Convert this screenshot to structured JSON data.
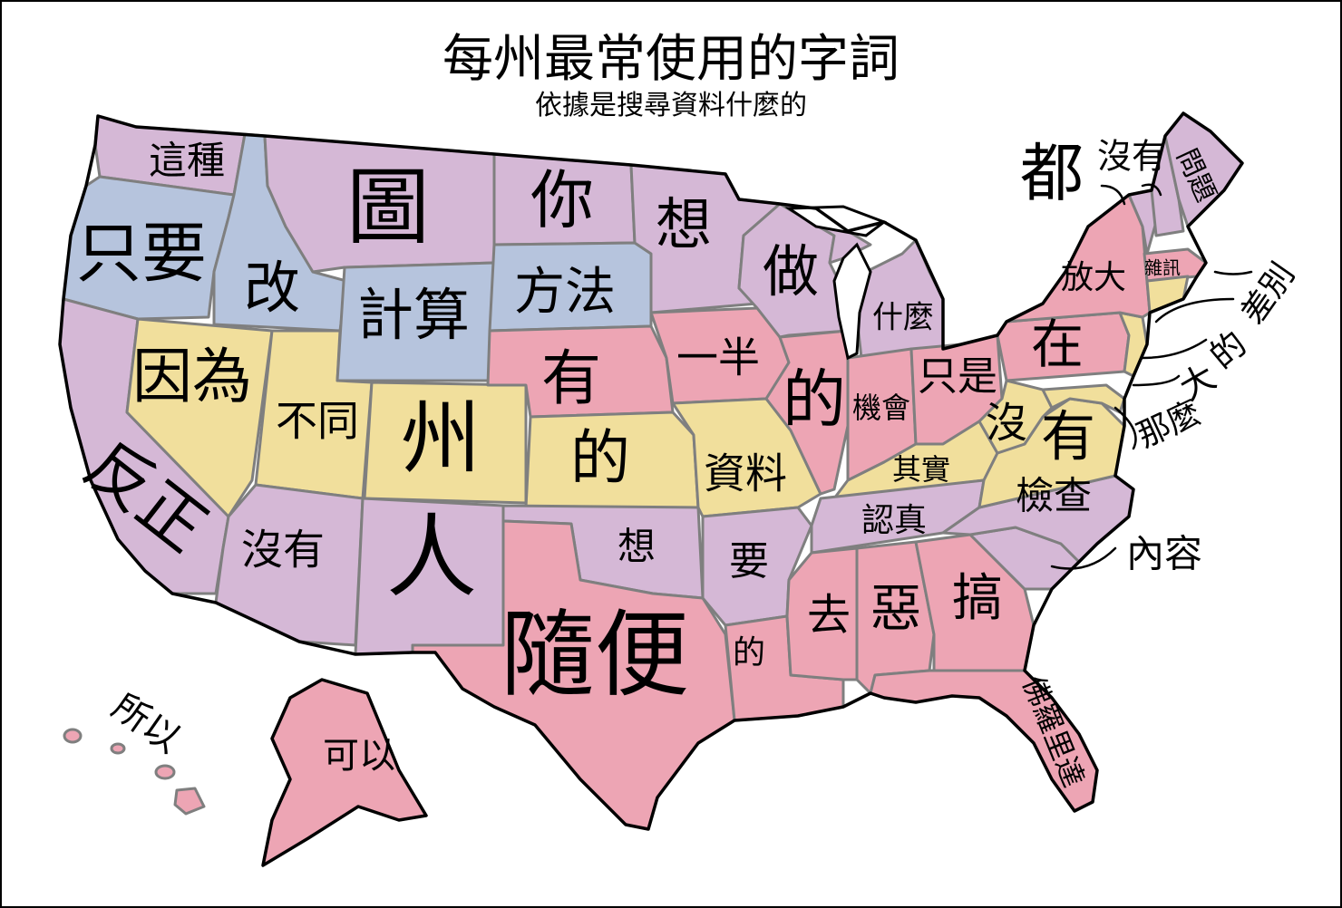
{
  "title": "每州最常使用的字詞",
  "subtitle": "依據是搜尋資料什麼的",
  "colors": {
    "purple": "#d5b8d6",
    "blue": "#b6c4dd",
    "yellow": "#f1df9c",
    "pink": "#eda5b4",
    "outline": "#000000",
    "border": "#7f7f7f"
  },
  "labels": {
    "washington": "這種",
    "oregon": "只要",
    "california": "反正",
    "idaho": "改",
    "montana": "圖",
    "nevada": "因為",
    "utah": "不同",
    "wyoming": "計算",
    "colorado": "州",
    "arizona": "沒有",
    "new_mexico": "人",
    "north_dakota": "你",
    "south_dakota": "方法",
    "nebraska": "有",
    "kansas": "的",
    "oklahoma": "想",
    "texas": "隨便",
    "minnesota": "想",
    "iowa": "一半",
    "missouri": "資料",
    "arkansas": "要",
    "louisiana": "的",
    "wisconsin": "做",
    "illinois": "的",
    "michigan": "什麼",
    "indiana": "機會",
    "ohio": "只是",
    "kentucky": "其實",
    "tennessee": "認真",
    "mississippi": "去",
    "alabama": "惡",
    "georgia": "搞",
    "florida": "佛羅里達",
    "south_carolina": "內容",
    "north_carolina": "檢查",
    "virginia": "有",
    "west_virginia": "沒",
    "pennsylvania": "在",
    "new_york": "放大",
    "vermont_nh": "沒有",
    "maine": "問題",
    "massachusetts": "雜訊",
    "rhode_island": "差別",
    "new_jersey": "的",
    "delaware": "大",
    "maryland": "那麼",
    "northeast_big": "都",
    "alaska": "可以",
    "hawaii": "所以"
  }
}
